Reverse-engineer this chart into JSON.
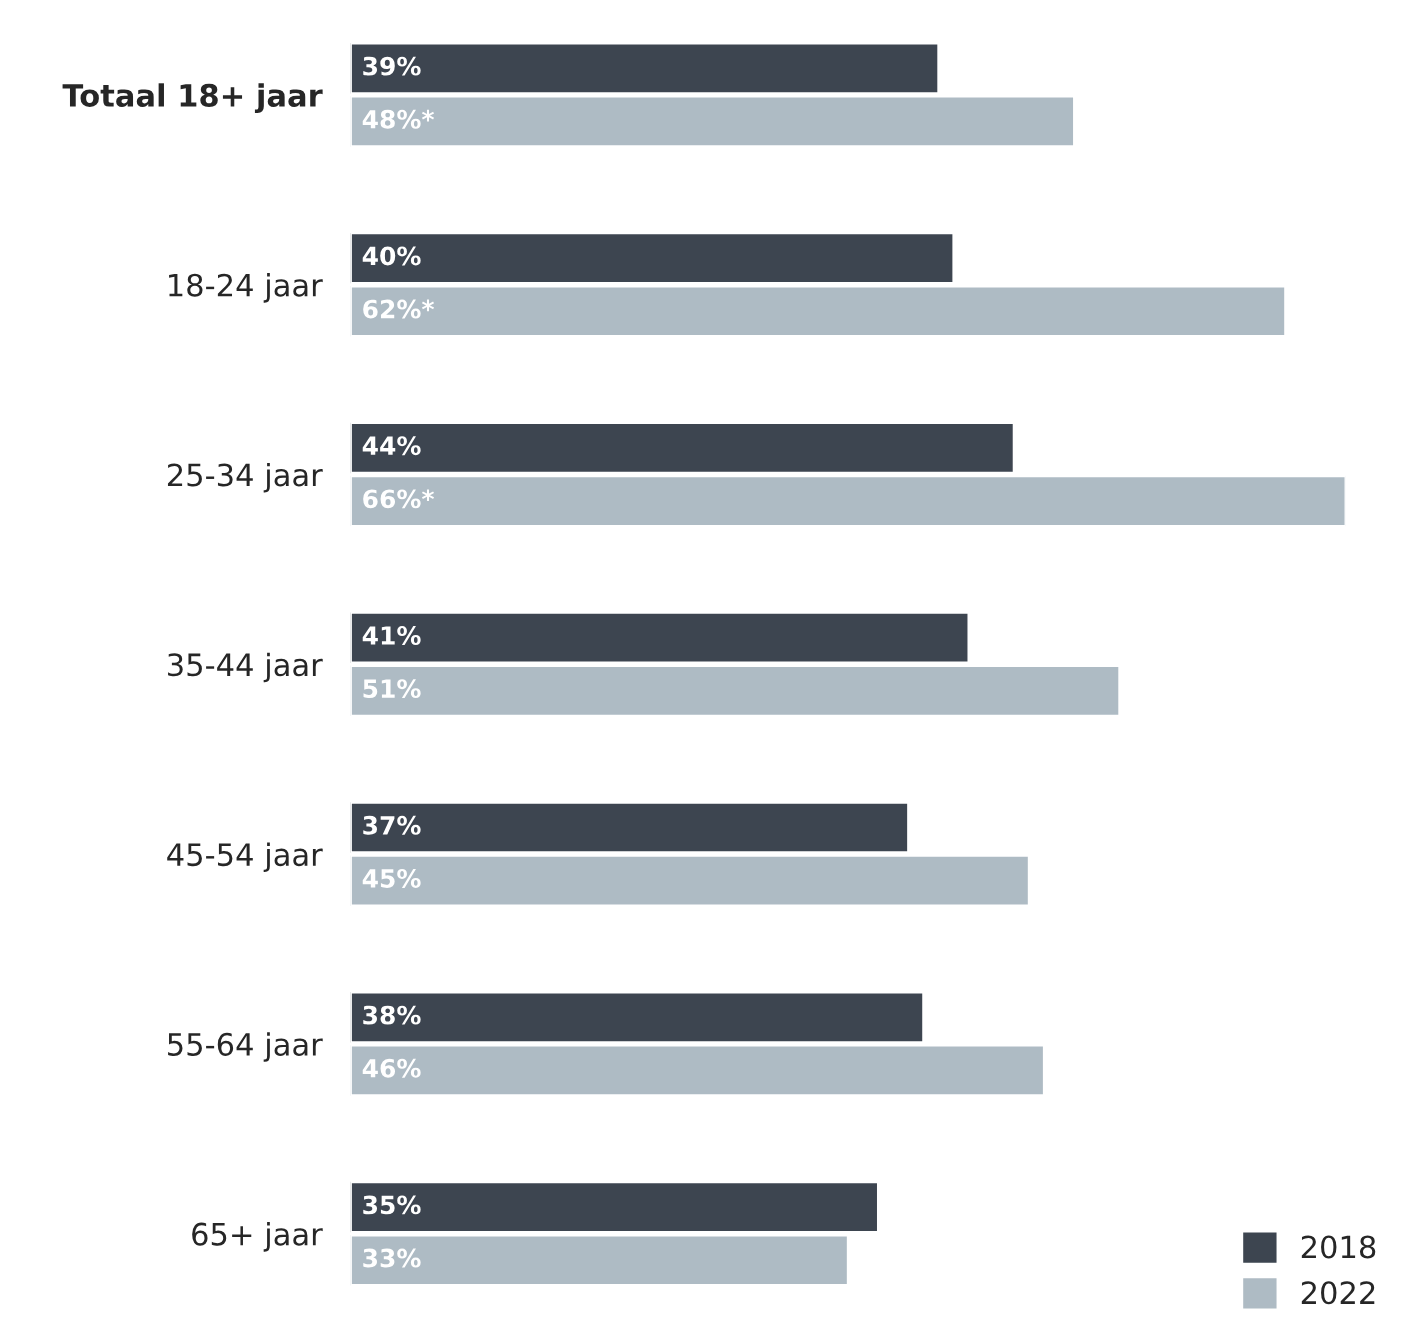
{
  "chart_data": {
    "type": "bar",
    "orientation": "horizontal",
    "categories": [
      "Totaal 18+ jaar",
      "18-24 jaar",
      "25-34 jaar",
      "35-44 jaar",
      "45-54 jaar",
      "55-64 jaar",
      "65+ jaar"
    ],
    "series": [
      {
        "name": "2018",
        "color": "#3d4550",
        "values": [
          39,
          40,
          44,
          41,
          37,
          38,
          35
        ],
        "value_labels": [
          "39%",
          "40%",
          "44%",
          "41%",
          "37%",
          "38%",
          "35%"
        ]
      },
      {
        "name": "2022",
        "color": "#aebbc4",
        "values": [
          48,
          62,
          66,
          51,
          45,
          46,
          33
        ],
        "value_labels": [
          "48%*",
          "62%*",
          "66%*",
          "51%",
          "45%",
          "46%",
          "33%"
        ]
      }
    ],
    "legend": "bottom right",
    "grid": false,
    "tick_labels": "y"
  }
}
